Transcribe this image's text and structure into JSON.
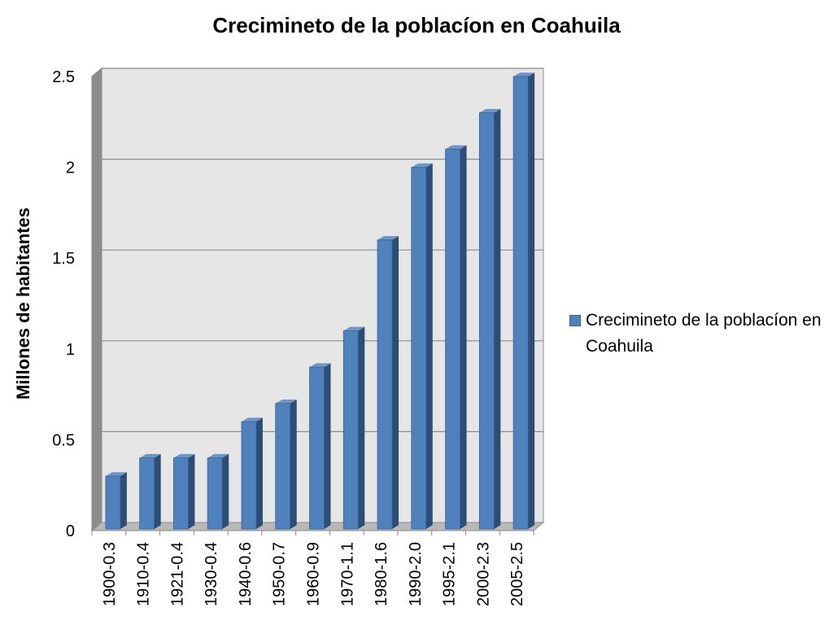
{
  "chart_data": {
    "type": "bar",
    "title": "Crecimineto de la poblacíon en Coahuila",
    "ylabel": "Millones de habitantes",
    "xlabel": "",
    "categories": [
      "1900-0.3",
      "1910-0.4",
      "1921-0.4",
      "1930-0.4",
      "1940-0.6",
      "1950-0.7",
      "1960-0.9",
      "1970-1.1",
      "1980-1.6",
      "1990-2.0",
      "1995-2.1",
      "2000-2.3",
      "2005-2.5"
    ],
    "series": [
      {
        "name": "Crecimineto de la poblacíon en Coahuila",
        "values": [
          0.3,
          0.4,
          0.4,
          0.4,
          0.6,
          0.7,
          0.9,
          1.1,
          1.6,
          2.0,
          2.1,
          2.3,
          2.5
        ]
      }
    ],
    "ylim": [
      0,
      2.5
    ],
    "yticks": [
      "0",
      "0.5",
      "1",
      "1.5",
      "2",
      "2.5"
    ],
    "grid": true,
    "legend_position": "right",
    "bar_color": "#4f81bd",
    "wall_color": "#e6e6e6"
  }
}
